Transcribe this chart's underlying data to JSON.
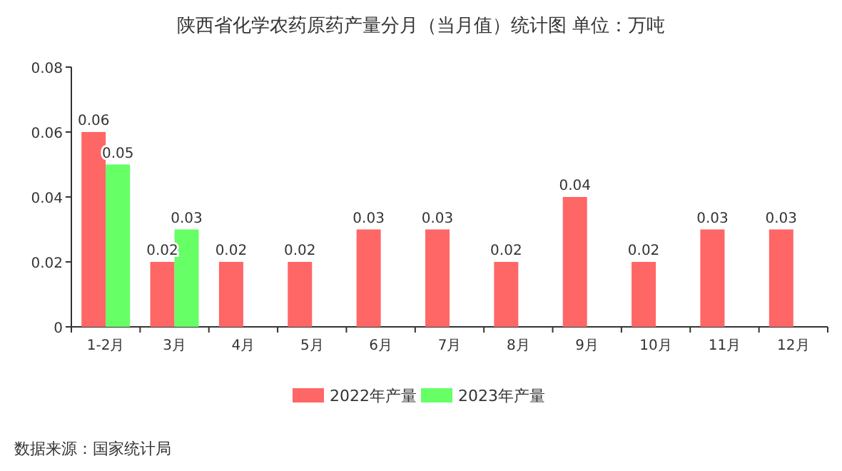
{
  "chart_data": {
    "type": "bar",
    "title": "陕西省化学农药原药产量分月（当月值）统计图 单位：万吨",
    "categories": [
      "1-2月",
      "3月",
      "4月",
      "5月",
      "6月",
      "7月",
      "8月",
      "9月",
      "10月",
      "11月",
      "12月"
    ],
    "series": [
      {
        "name": "2022年产量",
        "color": "#ff6666",
        "values": [
          0.06,
          0.02,
          0.02,
          0.02,
          0.03,
          0.03,
          0.02,
          0.04,
          0.02,
          0.03,
          0.03
        ]
      },
      {
        "name": "2023年产量",
        "color": "#66ff66",
        "values": [
          0.05,
          0.03,
          null,
          null,
          null,
          null,
          null,
          null,
          null,
          null,
          null
        ]
      }
    ],
    "ylim": [
      0,
      0.08
    ],
    "yticks": [
      0,
      0.02,
      0.04,
      0.06,
      0.08
    ],
    "data_labels": true,
    "legend": "bottom",
    "annotations": [
      "数据来源：国家统计局"
    ]
  }
}
